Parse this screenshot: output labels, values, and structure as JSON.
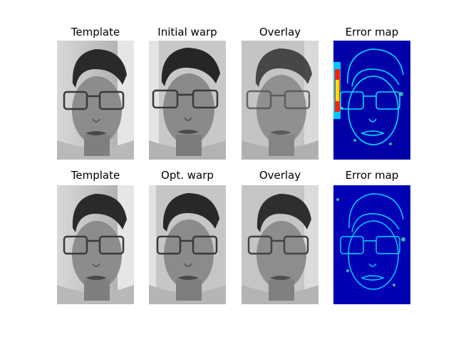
{
  "figure": {
    "rows": [
      {
        "panels": [
          {
            "title": "Template",
            "kind": "gray"
          },
          {
            "title": "Initial warp",
            "kind": "gray-warp"
          },
          {
            "title": "Overlay",
            "kind": "overlay"
          },
          {
            "title": "Error map",
            "kind": "error-high"
          }
        ]
      },
      {
        "panels": [
          {
            "title": "Template",
            "kind": "gray"
          },
          {
            "title": "Opt. warp",
            "kind": "gray-warp"
          },
          {
            "title": "Overlay",
            "kind": "overlay"
          },
          {
            "title": "Error map",
            "kind": "error-low"
          }
        ]
      }
    ]
  },
  "colors": {
    "face_gray": "#8c8c8c",
    "hair_dark": "#2a2a2a",
    "background_light": "#cfcfcf",
    "error_blue": "#0000b4",
    "error_cyan": "#00d8ff",
    "error_red": "#e00000"
  }
}
